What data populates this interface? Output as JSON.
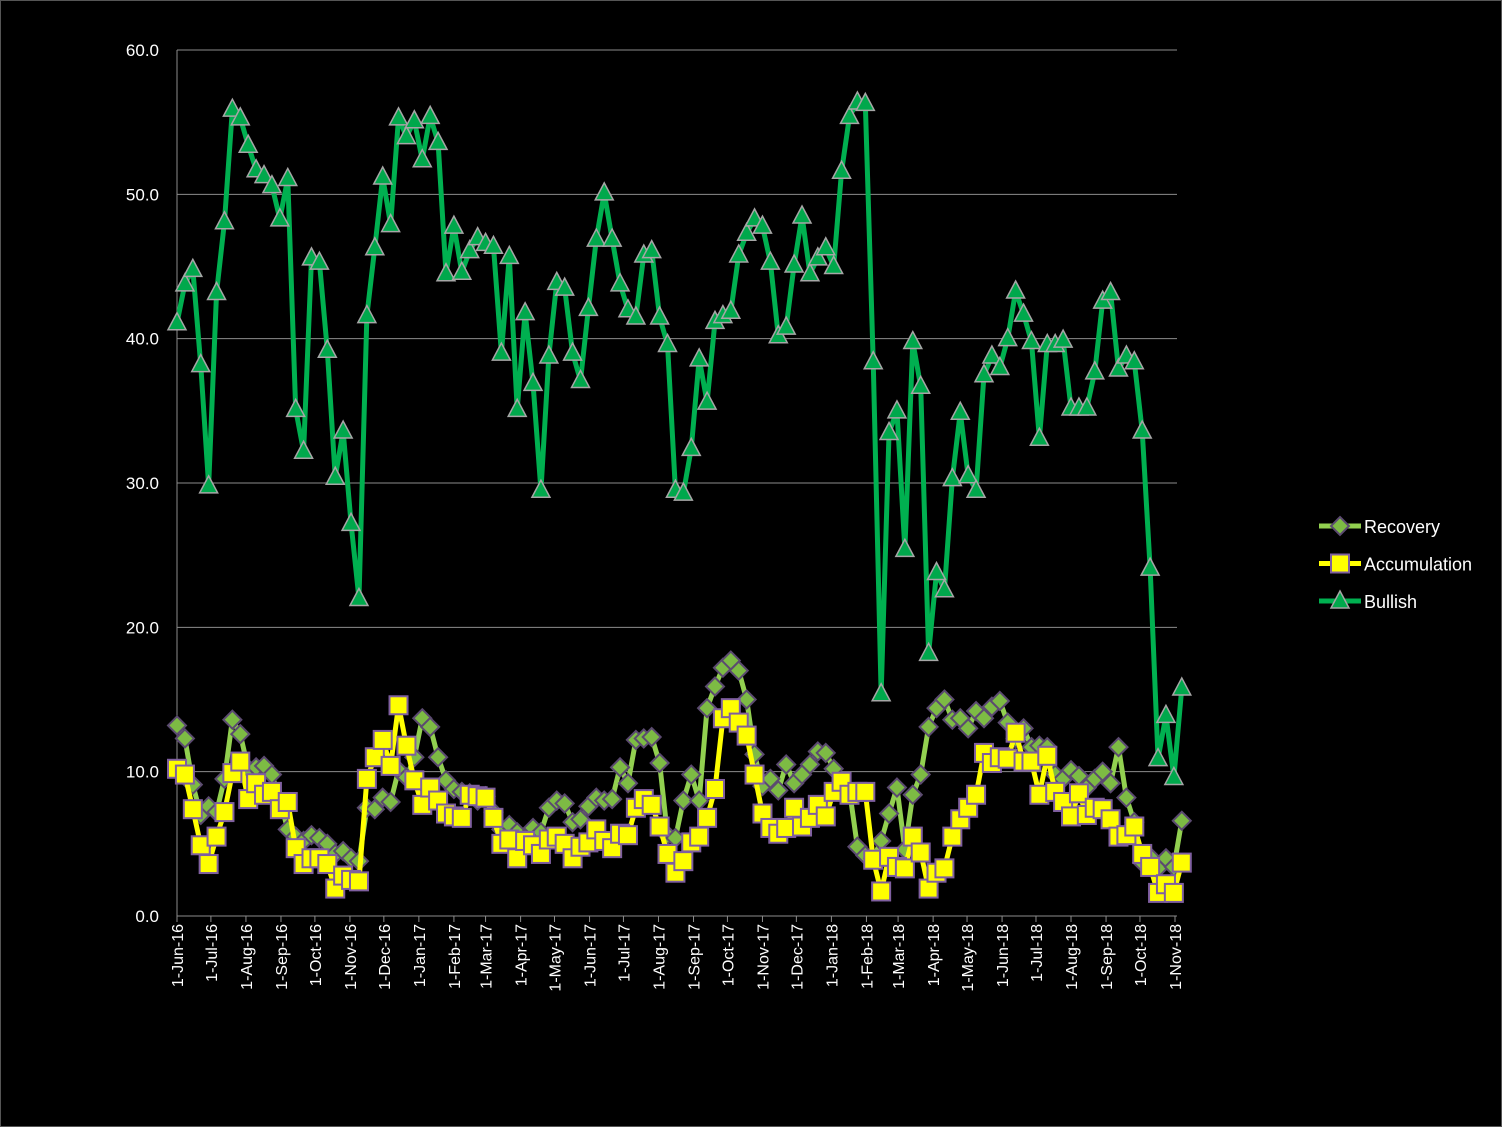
{
  "chart_data": {
    "type": "line",
    "title": "",
    "xlabel": "",
    "ylabel": "",
    "ylim": [
      0,
      60
    ],
    "yticks": [
      "0.0",
      "10.0",
      "20.0",
      "30.0",
      "40.0",
      "50.0",
      "60.0"
    ],
    "grid": true,
    "legend_position": "right",
    "x_start": "2016-06-01",
    "x_end": "2018-11-01",
    "x_interval_days": 7,
    "xticks": [
      "1-Jun-16",
      "1-Jul-16",
      "1-Aug-16",
      "1-Sep-16",
      "1-Oct-16",
      "1-Nov-16",
      "1-Dec-16",
      "1-Jan-17",
      "1-Feb-17",
      "1-Mar-17",
      "1-Apr-17",
      "1-May-17",
      "1-Jun-17",
      "1-Jul-17",
      "1-Aug-17",
      "1-Sep-17",
      "1-Oct-17",
      "1-Nov-17",
      "1-Dec-17",
      "1-Jan-18",
      "1-Feb-18",
      "1-Mar-18",
      "1-Apr-18",
      "1-May-18",
      "1-Jun-18",
      "1-Jul-18",
      "1-Aug-18",
      "1-Sep-18",
      "1-Oct-18",
      "1-Nov-18"
    ],
    "series": [
      {
        "name": "Recovery",
        "color": "#92d050",
        "marker": "diamond",
        "marker_color": "#7dbb44",
        "marker_stroke": "#5b4a70",
        "values": [
          13.2,
          12.3,
          9.1,
          7.0,
          7.6,
          7.2,
          9.5,
          13.6,
          12.6,
          10.2,
          10.3,
          10.4,
          9.8,
          8.0,
          6.0,
          5.5,
          5.2,
          5.6,
          5.4,
          5.0,
          4.3,
          4.5,
          4.0,
          3.8,
          7.5,
          7.4,
          8.2,
          7.9,
          10.1,
          9.6,
          11.0,
          13.7,
          13.1,
          11.0,
          9.4,
          8.8,
          8.6,
          8.5,
          8.0,
          8.3,
          7.2,
          6.0,
          6.3,
          5.8,
          5.4,
          6.1,
          5.8,
          7.5,
          8.0,
          7.8,
          6.5,
          6.7,
          7.6,
          8.2,
          8.0,
          8.1,
          10.3,
          9.2,
          12.2,
          12.3,
          12.4,
          10.6,
          5.6,
          5.4,
          8.0,
          9.8,
          8.0,
          14.4,
          15.9,
          17.2,
          17.7,
          17.0,
          15.0,
          11.2,
          9.0,
          9.5,
          8.7,
          10.5,
          9.2,
          9.8,
          10.5,
          11.4,
          11.3,
          10.2,
          9.0,
          8.7,
          4.8,
          4.2,
          4.0,
          5.2,
          7.1,
          8.9,
          4.6,
          8.4,
          9.8,
          13.1,
          14.4,
          15.0,
          13.6,
          13.7,
          13.0,
          14.2,
          13.7,
          14.5,
          14.9,
          13.4,
          12.3,
          13.0,
          11.7,
          11.8,
          11.7,
          9.8,
          9.5,
          10.1,
          9.7,
          8.9,
          9.5,
          10.0,
          9.2,
          11.7,
          8.2,
          6.5,
          3.7,
          4.1,
          3.3,
          4.0,
          3.4,
          6.6
        ]
      },
      {
        "name": "Accumulation",
        "color": "#ffff00",
        "marker": "square",
        "marker_color": "#ffff00",
        "marker_stroke": "#7f5fa0",
        "values": [
          10.2,
          9.8,
          7.4,
          4.9,
          3.6,
          5.5,
          7.2,
          9.9,
          10.7,
          8.1,
          9.2,
          8.4,
          8.6,
          7.4,
          7.9,
          4.7,
          3.6,
          4.0,
          4.0,
          3.6,
          1.9,
          2.8,
          2.5,
          2.4,
          9.5,
          11.0,
          12.2,
          10.4,
          14.6,
          11.8,
          9.4,
          7.7,
          8.9,
          8.0,
          7.1,
          6.9,
          6.8,
          8.4,
          8.3,
          8.2,
          6.8,
          5.0,
          5.3,
          4.0,
          5.2,
          4.9,
          4.3,
          5.3,
          5.5,
          5.0,
          4.0,
          4.8,
          5.1,
          6.0,
          5.2,
          4.7,
          5.7,
          5.6,
          7.5,
          8.1,
          7.7,
          6.2,
          4.3,
          3.0,
          3.8,
          5.1,
          5.5,
          6.8,
          8.8,
          13.7,
          14.4,
          13.4,
          12.5,
          9.8,
          7.1,
          6.1,
          5.7,
          6.1,
          7.5,
          6.2,
          6.8,
          7.7,
          6.9,
          8.6,
          9.3,
          8.4,
          8.6,
          8.6,
          3.9,
          1.7,
          4.1,
          3.4,
          3.3,
          5.5,
          4.4,
          1.9,
          3.0,
          3.3,
          5.5,
          6.7,
          7.5,
          8.4,
          11.3,
          10.6,
          11.0,
          10.9,
          12.7,
          10.7,
          10.7,
          8.4,
          11.1,
          8.6,
          7.9,
          6.9,
          8.5,
          7.0,
          7.5,
          7.4,
          6.7,
          5.5,
          5.6,
          6.2,
          4.3,
          3.4,
          1.6,
          2.2,
          1.6,
          3.7
        ]
      },
      {
        "name": "Bullish",
        "color": "#00b050",
        "marker": "triangle",
        "marker_color": "#00a84c",
        "marker_stroke": "#a6a6a6",
        "values": [
          41.1,
          43.8,
          44.8,
          38.2,
          29.8,
          43.2,
          48.1,
          55.9,
          55.3,
          53.4,
          51.7,
          51.3,
          50.6,
          48.3,
          51.1,
          35.1,
          32.2,
          45.6,
          45.3,
          39.2,
          30.4,
          33.6,
          27.2,
          22.0,
          41.6,
          46.3,
          51.2,
          47.9,
          55.3,
          54.0,
          55.1,
          52.4,
          55.4,
          53.6,
          44.5,
          47.8,
          44.6,
          46.1,
          47.0,
          46.6,
          46.4,
          39.0,
          45.7,
          35.1,
          41.8,
          36.9,
          29.5,
          38.8,
          43.9,
          43.5,
          39.0,
          37.1,
          42.1,
          46.9,
          50.1,
          46.9,
          43.8,
          42.0,
          41.5,
          45.8,
          46.1,
          41.5,
          39.6,
          29.5,
          29.3,
          32.4,
          38.6,
          35.6,
          41.2,
          41.6,
          41.9,
          45.8,
          47.3,
          48.3,
          47.8,
          45.3,
          40.2,
          40.8,
          45.1,
          48.5,
          44.5,
          45.6,
          46.3,
          45.0,
          51.6,
          55.4,
          56.4,
          56.3,
          38.4,
          15.4,
          33.5,
          35.0,
          25.4,
          39.8,
          36.7,
          18.2,
          23.8,
          22.6,
          30.3,
          34.9,
          30.5,
          29.5,
          37.5,
          38.8,
          38.0,
          40.0,
          43.3,
          41.7,
          39.8,
          33.1,
          39.6,
          39.6,
          39.9,
          35.2,
          35.2,
          35.2,
          37.7,
          42.6,
          43.2,
          37.9,
          38.8,
          38.4,
          33.6,
          24.1,
          10.9,
          13.9,
          9.6,
          15.8
        ]
      }
    ]
  }
}
